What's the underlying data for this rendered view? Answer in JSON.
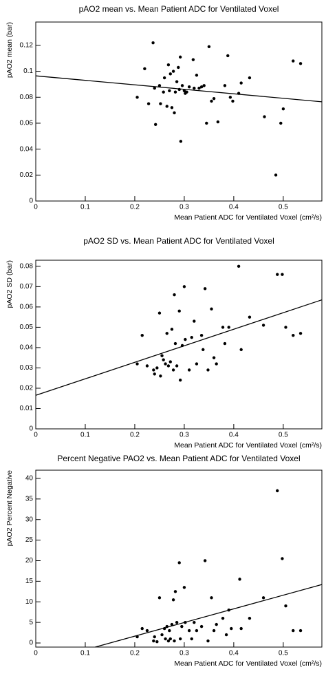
{
  "chart_data": [
    {
      "type": "scatter",
      "title": "pAO2 mean vs. Mean Patient ADC for Ventilated Voxel",
      "x_label": "Mean Patient ADC for Ventilated Voxel (cm²/s)",
      "y_label": "pAO2 mean (bar)",
      "xlim": [
        0,
        0.578
      ],
      "ylim": [
        0,
        0.138
      ],
      "xticks": [
        0,
        0.1,
        0.2,
        0.3,
        0.4,
        0.5
      ],
      "yticks": [
        0,
        0.02,
        0.04,
        0.06,
        0.08,
        0.1,
        0.12
      ],
      "color": "#000000",
      "x": [
        0.205,
        0.22,
        0.228,
        0.237,
        0.24,
        0.242,
        0.25,
        0.252,
        0.258,
        0.26,
        0.265,
        0.268,
        0.27,
        0.272,
        0.275,
        0.278,
        0.28,
        0.282,
        0.285,
        0.288,
        0.29,
        0.292,
        0.293,
        0.296,
        0.3,
        0.302,
        0.305,
        0.31,
        0.318,
        0.32,
        0.325,
        0.33,
        0.335,
        0.34,
        0.345,
        0.35,
        0.355,
        0.36,
        0.368,
        0.382,
        0.388,
        0.393,
        0.398,
        0.41,
        0.415,
        0.432,
        0.462,
        0.485,
        0.495,
        0.5,
        0.52,
        0.535
      ],
      "y": [
        0.08,
        0.102,
        0.075,
        0.122,
        0.087,
        0.059,
        0.089,
        0.075,
        0.084,
        0.095,
        0.073,
        0.105,
        0.085,
        0.098,
        0.072,
        0.1,
        0.068,
        0.084,
        0.092,
        0.103,
        0.086,
        0.111,
        0.046,
        0.089,
        0.085,
        0.083,
        0.084,
        0.088,
        0.109,
        0.087,
        0.097,
        0.087,
        0.088,
        0.089,
        0.06,
        0.119,
        0.077,
        0.079,
        0.061,
        0.089,
        0.112,
        0.08,
        0.077,
        0.083,
        0.091,
        0.095,
        0.065,
        0.02,
        0.06,
        0.071,
        0.108,
        0.106
      ],
      "fit_x": [
        0,
        0.578
      ],
      "fit_y": [
        0.0965,
        0.0765
      ]
    },
    {
      "type": "scatter",
      "title": "pAO2 SD vs. Mean Patient ADC for Ventilated Voxel",
      "x_label": "Mean Patient ADC for Ventilated Voxel (cm²/s)",
      "y_label": "pAO2 SD (bar)",
      "xlim": [
        0,
        0.578
      ],
      "ylim": [
        0,
        0.083
      ],
      "xticks": [
        0,
        0.1,
        0.2,
        0.3,
        0.4,
        0.5
      ],
      "yticks": [
        0,
        0.01,
        0.02,
        0.03,
        0.04,
        0.05,
        0.06,
        0.07,
        0.08
      ],
      "color": "#000000",
      "x": [
        0.205,
        0.215,
        0.225,
        0.238,
        0.24,
        0.245,
        0.25,
        0.252,
        0.255,
        0.258,
        0.262,
        0.265,
        0.268,
        0.272,
        0.275,
        0.278,
        0.28,
        0.282,
        0.285,
        0.29,
        0.292,
        0.296,
        0.3,
        0.302,
        0.31,
        0.315,
        0.32,
        0.325,
        0.335,
        0.338,
        0.342,
        0.348,
        0.355,
        0.36,
        0.365,
        0.378,
        0.382,
        0.39,
        0.41,
        0.415,
        0.432,
        0.46,
        0.488,
        0.498,
        0.505,
        0.52,
        0.535
      ],
      "y": [
        0.032,
        0.046,
        0.031,
        0.029,
        0.027,
        0.03,
        0.057,
        0.026,
        0.036,
        0.034,
        0.032,
        0.047,
        0.031,
        0.033,
        0.049,
        0.029,
        0.066,
        0.042,
        0.031,
        0.058,
        0.024,
        0.041,
        0.07,
        0.044,
        0.029,
        0.045,
        0.053,
        0.032,
        0.046,
        0.039,
        0.069,
        0.029,
        0.059,
        0.035,
        0.032,
        0.05,
        0.042,
        0.05,
        0.08,
        0.039,
        0.055,
        0.051,
        0.076,
        0.076,
        0.05,
        0.046,
        0.047
      ],
      "fit_x": [
        0,
        0.578
      ],
      "fit_y": [
        0.0165,
        0.0635
      ]
    },
    {
      "type": "scatter",
      "title": "Percent Negative PAO2 vs. Mean Patient ADC for Ventilated Voxel",
      "x_label": "Mean Patient ADC for Ventilated Voxel (cm²/s)",
      "y_label": "pAO2 Percent Negative",
      "xlim": [
        0,
        0.578
      ],
      "ylim": [
        -1,
        42
      ],
      "xticks": [
        0,
        0.1,
        0.2,
        0.3,
        0.4,
        0.5
      ],
      "yticks": [
        0,
        5,
        10,
        15,
        20,
        25,
        30,
        35,
        40
      ],
      "color": "#000000",
      "x": [
        0.205,
        0.215,
        0.225,
        0.238,
        0.24,
        0.245,
        0.25,
        0.255,
        0.26,
        0.262,
        0.265,
        0.268,
        0.27,
        0.272,
        0.275,
        0.278,
        0.28,
        0.282,
        0.285,
        0.29,
        0.292,
        0.295,
        0.3,
        0.302,
        0.31,
        0.315,
        0.32,
        0.325,
        0.335,
        0.342,
        0.348,
        0.355,
        0.36,
        0.365,
        0.378,
        0.385,
        0.39,
        0.395,
        0.412,
        0.415,
        0.432,
        0.46,
        0.488,
        0.498,
        0.505,
        0.52,
        0.535
      ],
      "y": [
        1.5,
        3.5,
        3,
        0.5,
        1.5,
        0.3,
        11,
        2,
        3.5,
        1,
        4,
        0.5,
        3,
        1,
        4.5,
        10.5,
        0.5,
        12.5,
        5,
        19.5,
        1,
        4,
        13.5,
        5,
        3,
        1,
        5,
        3,
        4,
        20,
        0.5,
        11,
        3,
        4.5,
        6,
        2,
        8,
        3.5,
        15.5,
        3.5,
        6,
        11,
        37,
        20.5,
        9,
        3,
        3
      ],
      "fit_x": [
        0.12,
        0.578
      ],
      "fit_y": [
        -1,
        14.2
      ]
    }
  ]
}
